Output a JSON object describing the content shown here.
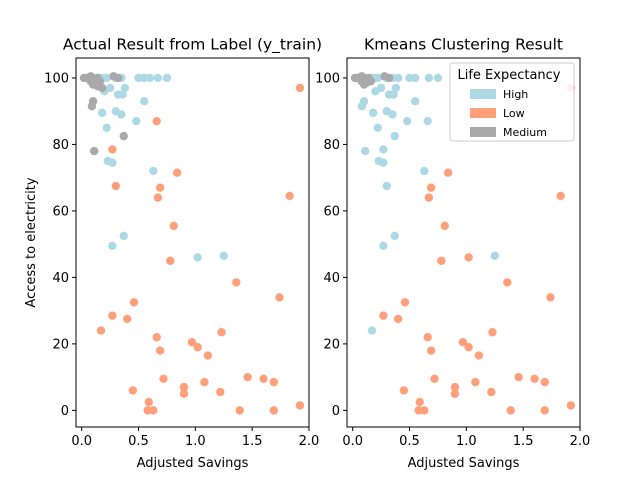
{
  "chart_data": [
    {
      "type": "scatter",
      "title": "Actual Result from Label (y_train)",
      "xlabel": "Adjusted Savings",
      "ylabel": "Access to electricity",
      "xlim": [
        -0.05,
        2.0
      ],
      "ylim": [
        -5,
        106
      ],
      "xticks": [
        "0.0",
        "0.5",
        "1.0",
        "1.5",
        "2.0"
      ],
      "yticks": [
        "0",
        "20",
        "40",
        "60",
        "80",
        "100"
      ],
      "grid": false,
      "series": [
        {
          "name": "High",
          "color": "#add8e6",
          "points": [
            [
              0.15,
              100
            ],
            [
              0.17,
              100
            ],
            [
              0.2,
              100
            ],
            [
              0.22,
              100
            ],
            [
              0.3,
              100
            ],
            [
              0.35,
              100
            ],
            [
              0.5,
              100
            ],
            [
              0.55,
              100
            ],
            [
              0.6,
              100
            ],
            [
              0.67,
              100
            ],
            [
              0.75,
              100
            ],
            [
              0.25,
              97
            ],
            [
              0.38,
              97
            ],
            [
              0.2,
              96
            ],
            [
              0.32,
              95
            ],
            [
              0.36,
              95
            ],
            [
              0.55,
              93
            ],
            [
              0.18,
              89.5
            ],
            [
              0.3,
              90
            ],
            [
              0.35,
              89
            ],
            [
              0.48,
              87
            ],
            [
              0.22,
              85
            ],
            [
              0.23,
              75
            ],
            [
              0.27,
              74.5
            ],
            [
              0.63,
              72
            ],
            [
              0.27,
              49.5
            ],
            [
              0.37,
              52.5
            ],
            [
              1.02,
              46
            ],
            [
              1.25,
              46.5
            ]
          ]
        },
        {
          "name": "Low",
          "color": "#ffa07a",
          "points": [
            [
              1.92,
              97
            ],
            [
              0.66,
              87
            ],
            [
              0.27,
              78.5
            ],
            [
              0.84,
              71.5
            ],
            [
              0.3,
              67.5
            ],
            [
              0.69,
              67
            ],
            [
              0.67,
              64
            ],
            [
              1.83,
              64.5
            ],
            [
              0.81,
              55.5
            ],
            [
              0.78,
              45
            ],
            [
              1.36,
              38.5
            ],
            [
              1.74,
              34
            ],
            [
              0.46,
              32.5
            ],
            [
              0.27,
              28.5
            ],
            [
              0.4,
              27.5
            ],
            [
              0.17,
              24
            ],
            [
              0.66,
              22
            ],
            [
              1.23,
              23.5
            ],
            [
              0.69,
              18
            ],
            [
              0.97,
              20.5
            ],
            [
              1.02,
              19
            ],
            [
              1.11,
              16.5
            ],
            [
              0.72,
              9.5
            ],
            [
              0.45,
              6
            ],
            [
              0.9,
              7
            ],
            [
              0.9,
              5
            ],
            [
              1.08,
              8.5
            ],
            [
              1.22,
              5.5
            ],
            [
              1.46,
              10
            ],
            [
              1.6,
              9.5
            ],
            [
              1.69,
              8.5
            ],
            [
              0.59,
              2.5
            ],
            [
              0.58,
              0
            ],
            [
              0.63,
              0
            ],
            [
              1.39,
              0
            ],
            [
              1.69,
              0
            ],
            [
              1.92,
              1.5
            ]
          ]
        },
        {
          "name": "Medium",
          "color": "#a9a9a9",
          "points": [
            [
              0.02,
              100
            ],
            [
              0.04,
              100
            ],
            [
              0.06,
              100
            ],
            [
              0.08,
              100.5
            ],
            [
              0.1,
              100
            ],
            [
              0.12,
              99.5
            ],
            [
              0.14,
              100
            ],
            [
              0.16,
              99
            ],
            [
              0.08,
              99
            ],
            [
              0.1,
              98
            ],
            [
              0.12,
              98.5
            ],
            [
              0.28,
              100.5
            ],
            [
              0.32,
              100
            ],
            [
              0.18,
              97
            ],
            [
              0.14,
              97.5
            ],
            [
              0.1,
              93
            ],
            [
              0.09,
              91.5
            ],
            [
              0.37,
              82.5
            ],
            [
              0.11,
              78
            ]
          ]
        }
      ]
    },
    {
      "type": "scatter",
      "title": "Kmeans Clustering Result",
      "xlabel": "Adjusted Savings",
      "ylabel": "",
      "xlim": [
        -0.05,
        2.0
      ],
      "ylim": [
        -5,
        106
      ],
      "xticks": [
        "0.0",
        "0.5",
        "1.0",
        "1.5",
        "2.0"
      ],
      "yticks": [
        "0",
        "20",
        "40",
        "60",
        "80",
        "100"
      ],
      "grid": false,
      "legend": {
        "title": "Life Expectancy",
        "placement": "top-right",
        "entries": [
          {
            "label": "High",
            "color": "#add8e6"
          },
          {
            "label": "Low",
            "color": "#ffa07a"
          },
          {
            "label": "Medium",
            "color": "#a9a9a9"
          }
        ]
      },
      "series": [
        {
          "name": "High",
          "color": "#add8e6",
          "points": [
            [
              0.15,
              100
            ],
            [
              0.17,
              100
            ],
            [
              0.2,
              100
            ],
            [
              0.22,
              100
            ],
            [
              0.3,
              100
            ],
            [
              0.35,
              100
            ],
            [
              0.4,
              100
            ],
            [
              0.5,
              100
            ],
            [
              0.55,
              100
            ],
            [
              0.67,
              100
            ],
            [
              0.75,
              100
            ],
            [
              0.25,
              97
            ],
            [
              0.38,
              97
            ],
            [
              0.2,
              96
            ],
            [
              0.32,
              95
            ],
            [
              0.36,
              95
            ],
            [
              0.55,
              93
            ],
            [
              0.08,
              91.5
            ],
            [
              0.1,
              93
            ],
            [
              0.18,
              89.5
            ],
            [
              0.3,
              90
            ],
            [
              0.35,
              89
            ],
            [
              0.48,
              87
            ],
            [
              0.66,
              87
            ],
            [
              0.22,
              85
            ],
            [
              0.37,
              82.5
            ],
            [
              0.11,
              78
            ],
            [
              0.27,
              78.5
            ],
            [
              0.23,
              75
            ],
            [
              0.27,
              74.5
            ],
            [
              0.63,
              72
            ],
            [
              0.3,
              67.5
            ],
            [
              0.27,
              49.5
            ],
            [
              0.37,
              52.5
            ],
            [
              1.25,
              46.5
            ],
            [
              0.17,
              24
            ]
          ]
        },
        {
          "name": "Low",
          "color": "#ffa07a",
          "points": [
            [
              1.92,
              97
            ],
            [
              0.84,
              71.5
            ],
            [
              0.69,
              67
            ],
            [
              0.67,
              64
            ],
            [
              1.83,
              64.5
            ],
            [
              0.81,
              55.5
            ],
            [
              0.78,
              45
            ],
            [
              1.02,
              46
            ],
            [
              1.36,
              38.5
            ],
            [
              1.74,
              34
            ],
            [
              0.46,
              32.5
            ],
            [
              0.27,
              28.5
            ],
            [
              0.4,
              27.5
            ],
            [
              0.66,
              22
            ],
            [
              1.23,
              23.5
            ],
            [
              0.69,
              18
            ],
            [
              0.97,
              20.5
            ],
            [
              1.02,
              19
            ],
            [
              1.11,
              16.5
            ],
            [
              0.72,
              9.5
            ],
            [
              0.45,
              6
            ],
            [
              0.9,
              7
            ],
            [
              0.9,
              5
            ],
            [
              1.08,
              8.5
            ],
            [
              1.22,
              5.5
            ],
            [
              1.46,
              10
            ],
            [
              1.6,
              9.5
            ],
            [
              1.69,
              8.5
            ],
            [
              0.59,
              2.5
            ],
            [
              0.58,
              0
            ],
            [
              0.63,
              0
            ],
            [
              1.39,
              0
            ],
            [
              1.69,
              0
            ],
            [
              1.92,
              1.5
            ]
          ]
        },
        {
          "name": "Medium",
          "color": "#a9a9a9",
          "points": [
            [
              0.02,
              100
            ],
            [
              0.04,
              100
            ],
            [
              0.06,
              100
            ],
            [
              0.08,
              100.5
            ],
            [
              0.1,
              100
            ],
            [
              0.12,
              99.5
            ],
            [
              0.14,
              100
            ],
            [
              0.16,
              99
            ],
            [
              0.08,
              99
            ],
            [
              0.1,
              98
            ],
            [
              0.12,
              98.5
            ],
            [
              0.28,
              100.5
            ],
            [
              0.32,
              100
            ]
          ]
        }
      ]
    }
  ]
}
